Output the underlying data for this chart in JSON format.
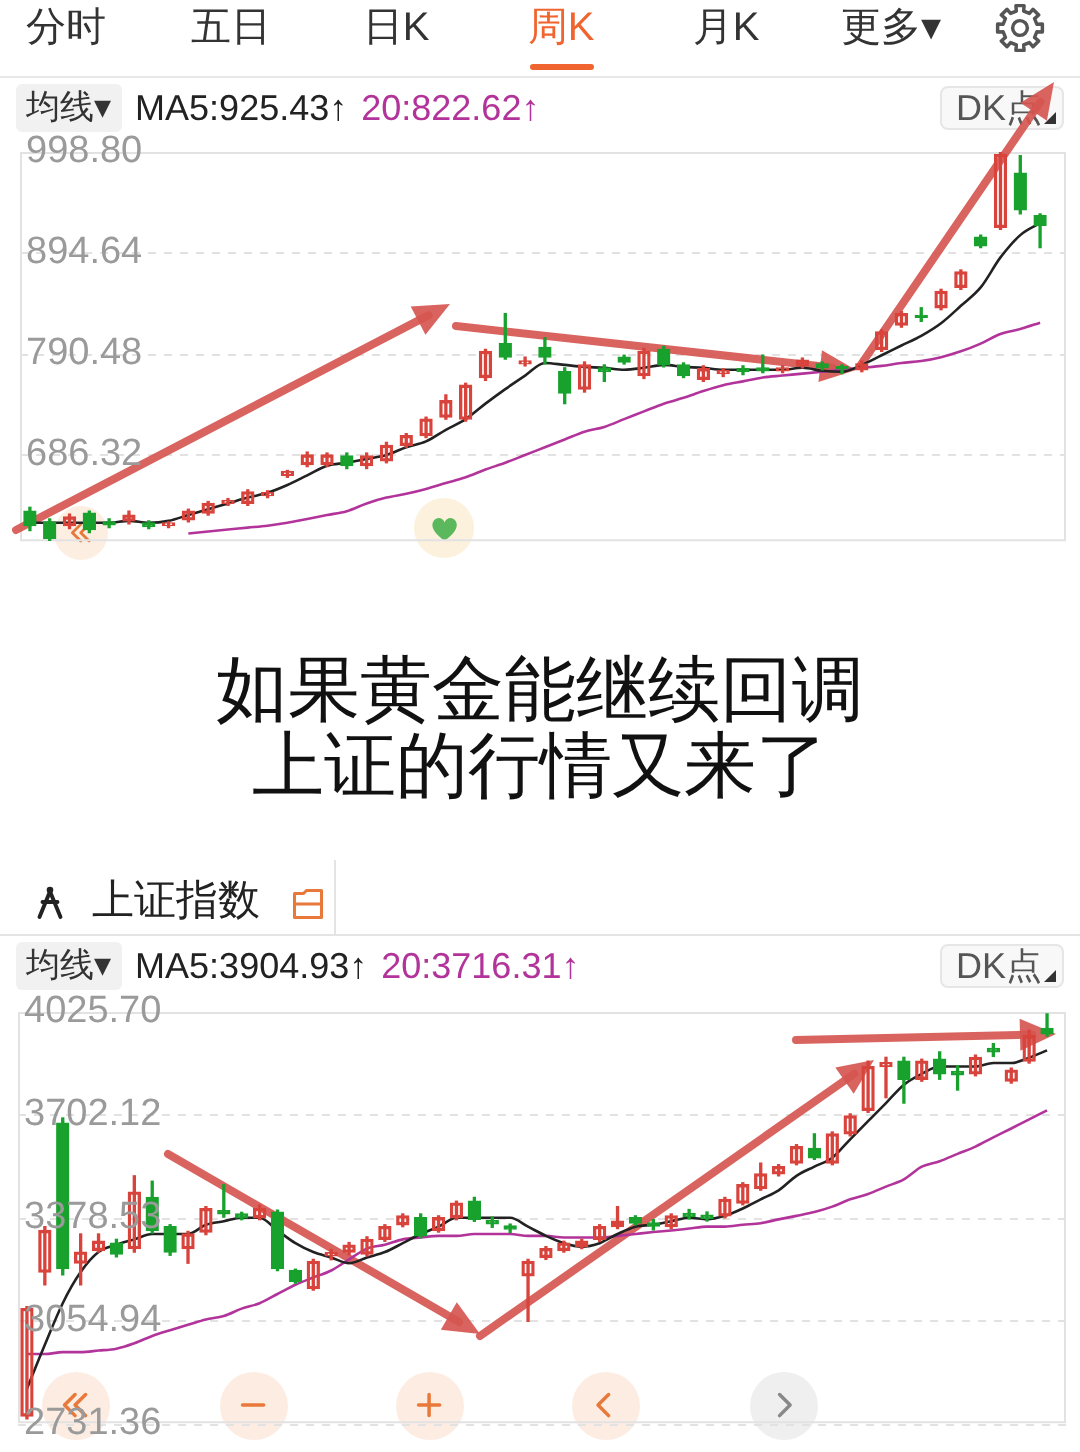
{
  "chart_data": [
    {
      "type": "candlestick",
      "legend_title": "均线▾",
      "annotations": [
        "分时",
        "五日",
        "日K",
        "周K",
        "月K",
        "更多▾",
        "DK点",
        "如果黄金能继续回调",
        "上证的行情又来了"
      ],
      "categories": [
        null,
        null,
        null,
        null,
        null,
        null,
        null,
        null,
        null,
        null,
        null,
        null,
        null,
        null,
        null,
        null,
        null,
        null,
        null,
        null,
        null,
        null,
        null,
        null,
        null,
        null,
        null,
        null,
        null,
        null,
        null,
        null,
        null,
        null,
        null,
        null,
        null,
        null,
        null,
        null,
        null,
        null,
        null,
        null,
        null,
        null,
        null,
        null,
        null,
        null,
        null,
        null
      ],
      "ohlc": [
        [
          628,
          632,
          608,
          613
        ],
        [
          617,
          620,
          598,
          600
        ],
        [
          613,
          625,
          610,
          622
        ],
        [
          626,
          628,
          606,
          609
        ],
        [
          617,
          620,
          611,
          614
        ],
        [
          618,
          628,
          615,
          624
        ],
        [
          616,
          618,
          610,
          612
        ],
        [
          613,
          617,
          611,
          616
        ],
        [
          619,
          630,
          617,
          628
        ],
        [
          626,
          638,
          624,
          636
        ],
        [
          636,
          641,
          634,
          639
        ],
        [
          636,
          650,
          634,
          648
        ],
        [
          644,
          649,
          642,
          647
        ],
        [
          665,
          670,
          663,
          669
        ],
        [
          676,
          689,
          674,
          686
        ],
        [
          676,
          688,
          674,
          686
        ],
        [
          685,
          688,
          672,
          675
        ],
        [
          675,
          688,
          672,
          685
        ],
        [
          680,
          699,
          678,
          696
        ],
        [
          696,
          708,
          694,
          706
        ],
        [
          706,
          725,
          704,
          723
        ],
        [
          725,
          748,
          723,
          742
        ],
        [
          723,
          760,
          721,
          758
        ],
        [
          766,
          795,
          763,
          793
        ],
        [
          801,
          832,
          785,
          787
        ],
        [
          780,
          787,
          778,
          783
        ],
        [
          797,
          807,
          780,
          787
        ],
        [
          772,
          776,
          739,
          750
        ],
        [
          754,
          782,
          751,
          779
        ],
        [
          776,
          779,
          762,
          772
        ],
        [
          787,
          789,
          780,
          782
        ],
        [
          768,
          796,
          765,
          793
        ],
        [
          795,
          798,
          777,
          779
        ],
        [
          779,
          781,
          766,
          768
        ],
        [
          764,
          778,
          762,
          775
        ],
        [
          770,
          775,
          767,
          773
        ],
        [
          775,
          778,
          769,
          772
        ],
        [
          776,
          789,
          771,
          773
        ],
        [
          773,
          778,
          771,
          776
        ],
        [
          778,
          786,
          776,
          784
        ],
        [
          780,
          782,
          774,
          776
        ],
        [
          777,
          779,
          770,
          775
        ],
        [
          774,
          783,
          772,
          780
        ],
        [
          795,
          815,
          793,
          813
        ],
        [
          820,
          834,
          818,
          832
        ],
        [
          830,
          838,
          824,
          828
        ],
        [
          838,
          857,
          836,
          855
        ],
        [
          859,
          877,
          857,
          875
        ],
        [
          911,
          913,
          900,
          902
        ],
        [
          921,
          998,
          919,
          996
        ],
        [
          977,
          995,
          935,
          939
        ],
        [
          933,
          935,
          900,
          923
        ]
      ],
      "colors": [
        "#18a12c",
        "#18a12c",
        "#d8433c",
        "#18a12c",
        "#18a12c",
        "#d8433c",
        "#18a12c",
        "#d8433c",
        "#d8433c",
        "#d8433c",
        "#d8433c",
        "#d8433c",
        "#d8433c",
        "#d8433c",
        "#d8433c",
        "#d8433c",
        "#18a12c",
        "#d8433c",
        "#d8433c",
        "#d8433c",
        "#d8433c",
        "#d8433c",
        "#d8433c",
        "#d8433c",
        "#18a12c",
        "#d8433c",
        "#18a12c",
        "#18a12c",
        "#d8433c",
        "#18a12c",
        "#18a12c",
        "#d8433c",
        "#18a12c",
        "#18a12c",
        "#d8433c",
        "#d8433c",
        "#18a12c",
        "#18a12c",
        "#d8433c",
        "#d8433c",
        "#18a12c",
        "#18a12c",
        "#d8433c",
        "#d8433c",
        "#d8433c",
        "#18a12c",
        "#d8433c",
        "#d8433c",
        "#18a12c",
        "#d8433c",
        "#18a12c",
        "#18a12c"
      ],
      "series": [
        {
          "type": "line",
          "name": "MA5:925.43↑",
          "color": "#222222",
          "values": [
            616,
            616,
            616,
            616,
            616,
            618,
            616,
            618,
            624,
            630,
            636,
            642,
            647,
            655,
            665,
            675,
            678,
            682,
            686,
            694,
            700,
            712,
            723,
            739,
            754,
            768,
            781,
            779,
            777,
            776,
            774,
            776,
            779,
            777,
            776,
            774,
            774,
            774,
            774,
            776,
            773,
            772,
            779,
            789,
            799,
            809,
            822,
            840,
            859,
            890,
            913,
            925.43
          ]
        },
        {
          "type": "line",
          "name": "20:822.62↑",
          "color": "#b2349a",
          "values": [
            null,
            null,
            null,
            null,
            null,
            null,
            null,
            null,
            605,
            607,
            609,
            611,
            613,
            616,
            620,
            624,
            628,
            636,
            642,
            646,
            651,
            657,
            663,
            671,
            678,
            686,
            694,
            702,
            710,
            715,
            723,
            731,
            739,
            745,
            752,
            758,
            762,
            766,
            768,
            770,
            772,
            774,
            776,
            778,
            781,
            783,
            787,
            793,
            801,
            811,
            816,
            822.62
          ]
        }
      ],
      "ylim": [
        597,
        998.8
      ],
      "yticks": [
        {
          "value": 998.8,
          "label": "998.80"
        },
        894.64,
        790.48,
        686.32
      ],
      "grid": "y",
      "legend": "top left",
      "marker": "none",
      "line_style": "solid",
      "tick_labels": "y"
    },
    {
      "type": "candlestick",
      "title": "上证指数",
      "legend_title": "均线▾",
      "annotations": [
        "DK点"
      ],
      "categories": [
        null,
        null,
        null,
        null,
        null,
        null,
        null,
        null,
        null,
        null,
        null,
        null,
        null,
        null,
        null,
        null,
        null,
        null,
        null,
        null,
        null,
        null,
        null,
        null,
        null,
        null,
        null,
        null,
        null,
        null,
        null,
        null,
        null,
        null,
        null,
        null,
        null,
        null,
        null,
        null,
        null,
        null,
        null,
        null,
        null,
        null,
        null,
        null,
        null,
        null,
        null,
        null,
        null,
        null,
        null,
        null,
        null,
        null
      ],
      "ohlc": [
        [
          2754,
          3098,
          2745,
          3092
        ],
        [
          3207,
          3350,
          3167,
          3338
        ],
        [
          3676,
          3692,
          3198,
          3218
        ],
        [
          3235,
          3327,
          3167,
          3270
        ],
        [
          3275,
          3327,
          3270,
          3304
        ],
        [
          3298,
          3310,
          3255,
          3264
        ],
        [
          3281,
          3510,
          3270,
          3459
        ],
        [
          3442,
          3493,
          3330,
          3338
        ],
        [
          3350,
          3356,
          3260,
          3270
        ],
        [
          3281,
          3335,
          3235,
          3327
        ],
        [
          3333,
          3413,
          3325,
          3407
        ],
        [
          3400,
          3482,
          3380,
          3390
        ],
        [
          3390,
          3395,
          3372,
          3378
        ],
        [
          3378,
          3418,
          3372,
          3407
        ],
        [
          3396,
          3402,
          3212,
          3218
        ],
        [
          3212,
          3216,
          3172,
          3178
        ],
        [
          3155,
          3247,
          3150,
          3241
        ],
        [
          3258,
          3278,
          3246,
          3268
        ],
        [
          3270,
          3300,
          3262,
          3292
        ],
        [
          3264,
          3318,
          3258,
          3310
        ],
        [
          3310,
          3356,
          3304,
          3350
        ],
        [
          3356,
          3390,
          3350,
          3384
        ],
        [
          3378,
          3390,
          3315,
          3321
        ],
        [
          3338,
          3384,
          3333,
          3378
        ],
        [
          3378,
          3430,
          3372,
          3424
        ],
        [
          3430,
          3442,
          3367,
          3373
        ],
        [
          3370,
          3380,
          3348,
          3359
        ],
        [
          3352,
          3358,
          3332,
          3342
        ],
        [
          3195,
          3247,
          3052,
          3241
        ],
        [
          3253,
          3287,
          3247,
          3281
        ],
        [
          3275,
          3304,
          3270,
          3298
        ],
        [
          3287,
          3310,
          3281,
          3304
        ],
        [
          3310,
          3356,
          3304,
          3350
        ],
        [
          3350,
          3413,
          3344,
          3367
        ],
        [
          3378,
          3384,
          3356,
          3361
        ],
        [
          3362,
          3372,
          3340,
          3352
        ],
        [
          3350,
          3390,
          3344,
          3384
        ],
        [
          3392,
          3404,
          3374,
          3382
        ],
        [
          3386,
          3396,
          3368,
          3376
        ],
        [
          3384,
          3442,
          3378,
          3436
        ],
        [
          3424,
          3488,
          3419,
          3482
        ],
        [
          3470,
          3550,
          3465,
          3516
        ],
        [
          3516,
          3545,
          3510,
          3539
        ],
        [
          3550,
          3608,
          3545,
          3602
        ],
        [
          3596,
          3642,
          3562,
          3567
        ],
        [
          3550,
          3648,
          3545,
          3642
        ],
        [
          3642,
          3705,
          3636,
          3699
        ],
        [
          3716,
          3871,
          3710,
          3854
        ],
        [
          3854,
          3883,
          3756,
          3866
        ],
        [
          3871,
          3883,
          3739,
          3814
        ],
        [
          3814,
          3877,
          3808,
          3871
        ],
        [
          3877,
          3900,
          3814,
          3831
        ],
        [
          3838,
          3856,
          3780,
          3828
        ],
        [
          3831,
          3890,
          3825,
          3883
        ],
        [
          3911,
          3926,
          3886,
          3900
        ],
        [
          3808,
          3849,
          3802,
          3843
        ],
        [
          3871,
          3968,
          3865,
          3951
        ],
        [
          3974,
          4020,
          3950,
          3957
        ]
      ],
      "colors": [
        "#d8433c",
        "#d8433c",
        "#18a12c",
        "#d8433c",
        "#d8433c",
        "#18a12c",
        "#d8433c",
        "#18a12c",
        "#18a12c",
        "#d8433c",
        "#d8433c",
        "#18a12c",
        "#18a12c",
        "#d8433c",
        "#18a12c",
        "#18a12c",
        "#d8433c",
        "#d8433c",
        "#d8433c",
        "#d8433c",
        "#d8433c",
        "#d8433c",
        "#18a12c",
        "#d8433c",
        "#d8433c",
        "#18a12c",
        "#18a12c",
        "#18a12c",
        "#d8433c",
        "#d8433c",
        "#d8433c",
        "#d8433c",
        "#d8433c",
        "#d8433c",
        "#18a12c",
        "#18a12c",
        "#d8433c",
        "#18a12c",
        "#18a12c",
        "#d8433c",
        "#d8433c",
        "#d8433c",
        "#d8433c",
        "#d8433c",
        "#18a12c",
        "#d8433c",
        "#d8433c",
        "#d8433c",
        "#d8433c",
        "#18a12c",
        "#d8433c",
        "#18a12c",
        "#18a12c",
        "#d8433c",
        "#18a12c",
        "#d8433c",
        "#d8433c",
        "#18a12c"
      ],
      "series": [
        {
          "type": "line",
          "name": "MA5:3904.93↑",
          "color": "#222222",
          "values": [
            2840,
            2978,
            3109,
            3207,
            3270,
            3293,
            3310,
            3327,
            3327,
            3327,
            3356,
            3367,
            3378,
            3378,
            3338,
            3298,
            3270,
            3253,
            3235,
            3253,
            3270,
            3298,
            3327,
            3350,
            3378,
            3378,
            3378,
            3378,
            3350,
            3321,
            3298,
            3287,
            3298,
            3327,
            3350,
            3356,
            3367,
            3378,
            3373,
            3384,
            3407,
            3436,
            3464,
            3510,
            3539,
            3567,
            3625,
            3682,
            3739,
            3797,
            3831,
            3854,
            3854,
            3854,
            3865,
            3865,
            3882,
            3904.93
          ]
        },
        {
          "type": "line",
          "name": "20:3716.31↑",
          "color": "#b2349a",
          "values": [
            2949,
            2949,
            2955,
            2955,
            2960,
            2966,
            2983,
            3006,
            3024,
            3041,
            3058,
            3069,
            3092,
            3109,
            3138,
            3167,
            3190,
            3212,
            3247,
            3281,
            3293,
            3310,
            3316,
            3321,
            3321,
            3327,
            3327,
            3327,
            3321,
            3321,
            3316,
            3316,
            3316,
            3321,
            3327,
            3333,
            3338,
            3344,
            3350,
            3350,
            3356,
            3361,
            3373,
            3384,
            3396,
            3413,
            3436,
            3453,
            3476,
            3499,
            3539,
            3556,
            3579,
            3602,
            3631,
            3659,
            3688,
            3716.31
          ]
        }
      ],
      "ylim": [
        2731.36,
        4025.7
      ],
      "yticks": [
        {
          "value": 4025.7,
          "label": "4025.70"
        },
        3702.12,
        3378.53,
        3054.94,
        2731.36
      ],
      "grid": "y",
      "legend": "top left",
      "marker": "none",
      "line_style": "solid",
      "tick_labels": "y"
    }
  ]
}
